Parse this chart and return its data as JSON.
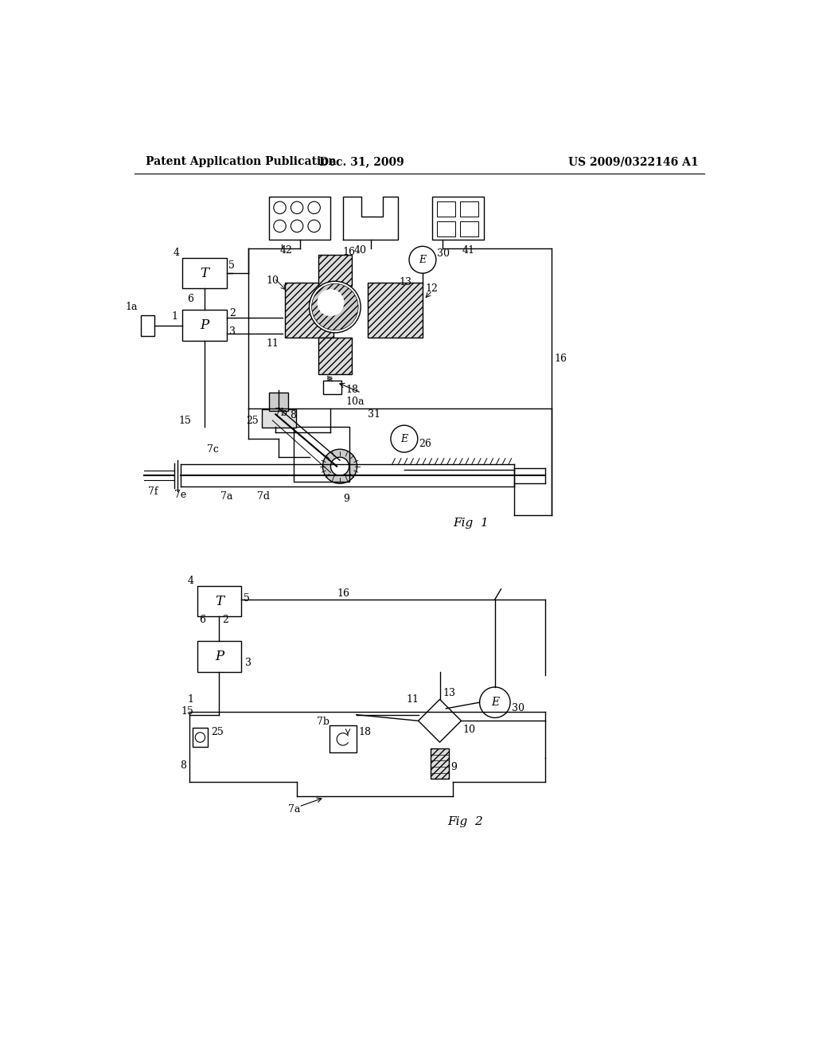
{
  "title_left": "Patent Application Publication",
  "title_center": "Dec. 31, 2009",
  "title_right": "US 2009/0322146 A1",
  "fig1_label": "Fig  1",
  "fig2_label": "Fig  2",
  "background_color": "#ffffff",
  "line_color": "#000000",
  "font_size_header": 10,
  "font_size_label": 9,
  "font_size_fig": 11
}
